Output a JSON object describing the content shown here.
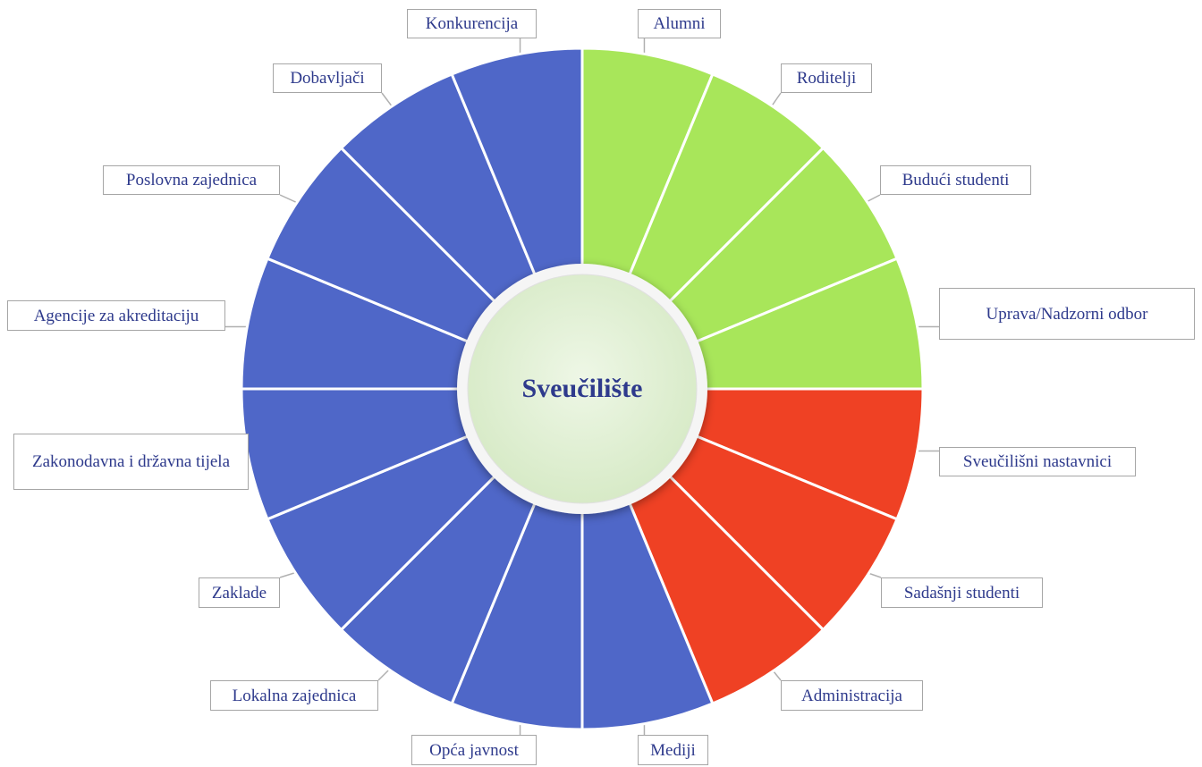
{
  "center": {
    "label": "Sveučilište"
  },
  "segments": [
    {
      "label": "Alumni",
      "color": "#a8e65a"
    },
    {
      "label": "Roditelji",
      "color": "#a8e65a"
    },
    {
      "label": "Budući studenti",
      "color": "#a8e65a"
    },
    {
      "label": "Uprava/Nadzorni odbor",
      "color": "#a8e65a"
    },
    {
      "label": "Sveučilišni nastavnici",
      "color": "#ef4124"
    },
    {
      "label": "Sadašnji studenti",
      "color": "#ef4124"
    },
    {
      "label": "Administracija",
      "color": "#ef4124"
    },
    {
      "label": "Mediji",
      "color": "#4f67c8"
    },
    {
      "label": "Opća javnost",
      "color": "#4f67c8"
    },
    {
      "label": "Lokalna zajednica",
      "color": "#4f67c8"
    },
    {
      "label": "Zaklade",
      "color": "#4f67c8"
    },
    {
      "label": "Zakonodavna i državna tijela",
      "color": "#4f67c8"
    },
    {
      "label": "Agencije za akreditaciju",
      "color": "#4f67c8"
    },
    {
      "label": "Poslovna zajednica",
      "color": "#4f67c8"
    },
    {
      "label": "Dobavljači",
      "color": "#4f67c8"
    },
    {
      "label": "Konkurencija",
      "color": "#4f67c8"
    }
  ]
}
